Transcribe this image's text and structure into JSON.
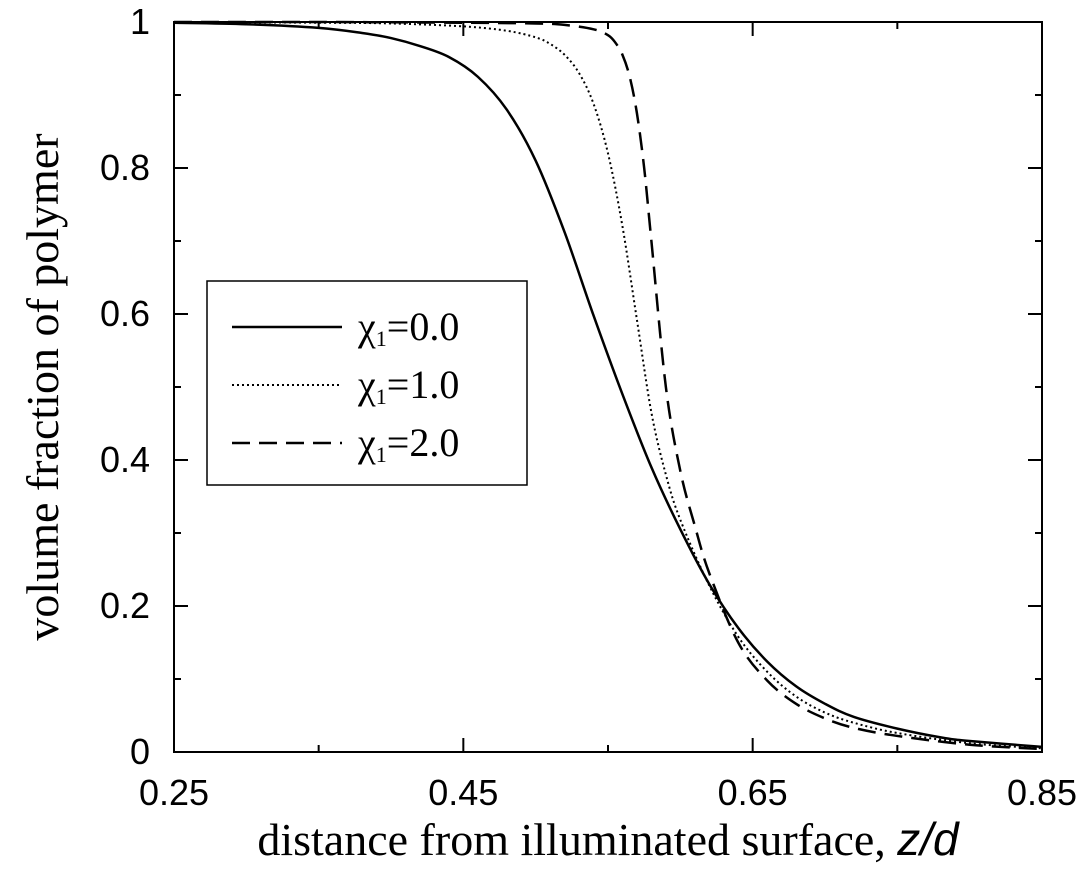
{
  "chart_data": {
    "type": "line",
    "xlabel_text": "distance from illuminated surface, ",
    "xlabel_var": "z/d",
    "ylabel": "volume fraction of polymer",
    "xlim": [
      0.25,
      0.85
    ],
    "ylim": [
      0,
      1
    ],
    "xticks": [
      0.25,
      0.45,
      0.65,
      0.85
    ],
    "xtick_labels": [
      "0.25",
      "0.45",
      "0.65",
      "0.85"
    ],
    "yticks": [
      0,
      0.2,
      0.4,
      0.6,
      0.8,
      1
    ],
    "ytick_labels": [
      "0",
      "0.2",
      "0.4",
      "0.6",
      "0.8",
      "1"
    ],
    "grid": false,
    "legend_position": "left-middle",
    "series": [
      {
        "name": "χ1=0.0",
        "symbol": "χ",
        "subscript": "1",
        "value_text": "=0.0",
        "style": "solid",
        "color": "#000000",
        "x": [
          0.25,
          0.3,
          0.35,
          0.38,
          0.4,
          0.42,
          0.44,
          0.46,
          0.48,
          0.5,
          0.52,
          0.54,
          0.56,
          0.58,
          0.6,
          0.62,
          0.64,
          0.66,
          0.68,
          0.7,
          0.72,
          0.75,
          0.78,
          0.8,
          0.85
        ],
        "y": [
          0.999,
          0.997,
          0.992,
          0.985,
          0.978,
          0.967,
          0.952,
          0.925,
          0.88,
          0.81,
          0.712,
          0.598,
          0.49,
          0.39,
          0.305,
          0.23,
          0.17,
          0.124,
          0.09,
          0.066,
          0.048,
          0.032,
          0.02,
          0.015,
          0.007
        ]
      },
      {
        "name": "χ1=1.0",
        "symbol": "χ",
        "subscript": "1",
        "value_text": "=1.0",
        "style": "dotted",
        "color": "#000000",
        "x": [
          0.25,
          0.35,
          0.4,
          0.45,
          0.48,
          0.5,
          0.51,
          0.52,
          0.53,
          0.54,
          0.55,
          0.56,
          0.57,
          0.58,
          0.59,
          0.6,
          0.62,
          0.64,
          0.66,
          0.68,
          0.7,
          0.72,
          0.75,
          0.8,
          0.85
        ],
        "y": [
          1.0,
          0.999,
          0.998,
          0.994,
          0.988,
          0.979,
          0.97,
          0.955,
          0.93,
          0.888,
          0.82,
          0.72,
          0.592,
          0.465,
          0.38,
          0.318,
          0.228,
          0.158,
          0.11,
          0.076,
          0.054,
          0.04,
          0.026,
          0.012,
          0.005
        ]
      },
      {
        "name": "χ1=2.0",
        "symbol": "χ",
        "subscript": "1",
        "value_text": "=2.0",
        "style": "dashed",
        "color": "#000000",
        "x": [
          0.25,
          0.35,
          0.45,
          0.5,
          0.52,
          0.54,
          0.55,
          0.555,
          0.56,
          0.565,
          0.57,
          0.575,
          0.58,
          0.59,
          0.6,
          0.61,
          0.62,
          0.64,
          0.66,
          0.68,
          0.7,
          0.72,
          0.75,
          0.8,
          0.85
        ],
        "y": [
          1.0,
          1.0,
          0.999,
          0.998,
          0.996,
          0.99,
          0.982,
          0.972,
          0.955,
          0.925,
          0.875,
          0.8,
          0.7,
          0.5,
          0.385,
          0.31,
          0.245,
          0.15,
          0.098,
          0.066,
          0.046,
          0.033,
          0.022,
          0.01,
          0.004
        ]
      }
    ]
  }
}
